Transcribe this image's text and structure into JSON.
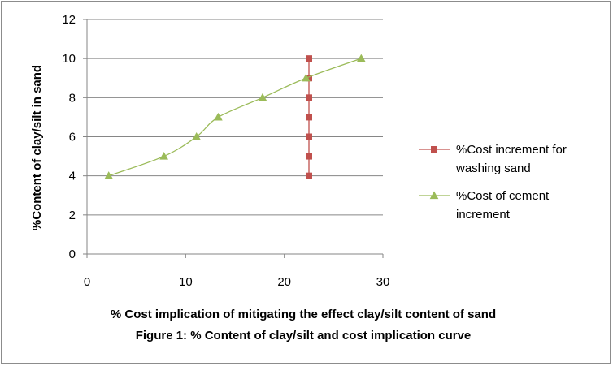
{
  "chart_data": {
    "type": "scatter",
    "title": "",
    "xlabel": "% Cost implication of mitigating the effect clay/silt content of sand",
    "caption": "Figure 1: % Content of clay/silt and cost implication curve",
    "ylabel": "%Content of clay/silt in sand",
    "xlim": [
      0,
      30
    ],
    "ylim": [
      0,
      12
    ],
    "x_ticks": [
      "0",
      "10",
      "20",
      "30"
    ],
    "y_ticks": [
      "0",
      "2",
      "4",
      "6",
      "8",
      "10",
      "12"
    ],
    "grid": "horizontal",
    "legend_position": "right",
    "series": [
      {
        "name": "%Cost increment for washing sand",
        "label_lines": [
          "%Cost increment for",
          "washing sand"
        ],
        "color": "#c0504d",
        "marker": "square",
        "line": "straight",
        "points": [
          {
            "x": 22.5,
            "y": 4
          },
          {
            "x": 22.5,
            "y": 5
          },
          {
            "x": 22.5,
            "y": 6
          },
          {
            "x": 22.5,
            "y": 7
          },
          {
            "x": 22.5,
            "y": 8
          },
          {
            "x": 22.5,
            "y": 9
          },
          {
            "x": 22.5,
            "y": 10
          }
        ]
      },
      {
        "name": "%Cost of cement increment",
        "label_lines": [
          "%Cost of cement",
          "increment"
        ],
        "color": "#9bbb59",
        "marker": "triangle",
        "line": "smooth",
        "points": [
          {
            "x": 2.2,
            "y": 4
          },
          {
            "x": 7.8,
            "y": 5
          },
          {
            "x": 11.1,
            "y": 6
          },
          {
            "x": 13.3,
            "y": 7
          },
          {
            "x": 17.8,
            "y": 8
          },
          {
            "x": 22.2,
            "y": 9
          },
          {
            "x": 27.8,
            "y": 10
          }
        ]
      }
    ]
  }
}
